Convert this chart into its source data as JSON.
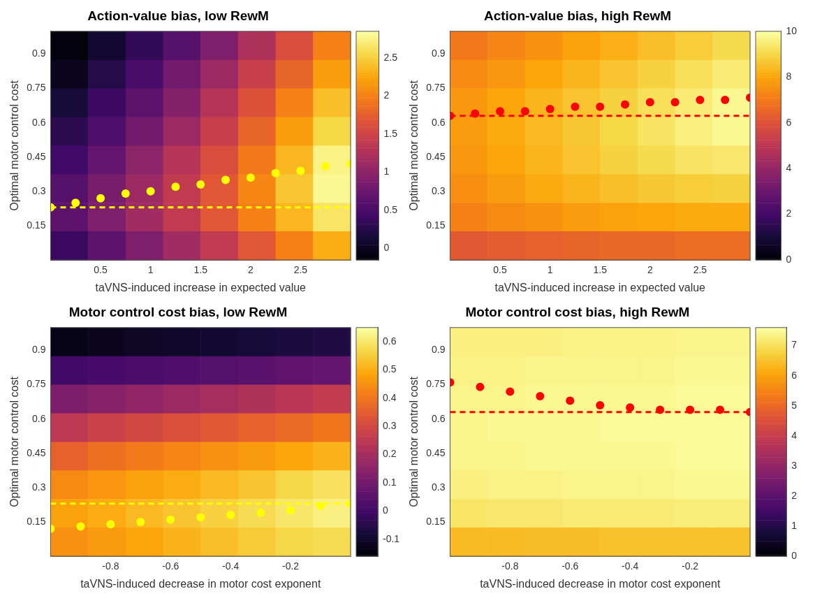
{
  "chart_data": [
    {
      "type": "heatmap",
      "title": "Action-value bias, low RewM",
      "xlabel": "taVNS-induced increase in expected value",
      "ylabel": "Optimal motor control cost",
      "x": [
        0.1875,
        0.5625,
        0.9375,
        1.3125,
        1.6875,
        2.0625,
        2.4375,
        2.8125
      ],
      "y": [
        0.9375,
        0.8125,
        0.6875,
        0.5625,
        0.4375,
        0.3125,
        0.1875,
        0.0625
      ],
      "cells": [
        [
          -0.1,
          0.1,
          0.35,
          0.6,
          0.9,
          1.25,
          1.6,
          2.0
        ],
        [
          0.0,
          0.25,
          0.5,
          0.8,
          1.1,
          1.45,
          1.8,
          2.2
        ],
        [
          0.15,
          0.4,
          0.65,
          0.95,
          1.3,
          1.65,
          2.0,
          2.4
        ],
        [
          0.3,
          0.55,
          0.8,
          1.1,
          1.45,
          1.8,
          2.2,
          2.55
        ],
        [
          0.45,
          0.7,
          1.0,
          1.3,
          1.6,
          1.95,
          2.35,
          2.75
        ],
        [
          0.6,
          0.85,
          1.1,
          1.4,
          1.7,
          2.05,
          2.45,
          2.8
        ],
        [
          0.65,
          0.9,
          1.15,
          1.4,
          1.7,
          2.0,
          2.35,
          2.65
        ],
        [
          0.4,
          0.65,
          0.9,
          1.15,
          1.4,
          1.7,
          2.0,
          2.3
        ]
      ],
      "clim": [
        -0.15,
        2.85
      ],
      "cticks": [
        0,
        0.5,
        1,
        1.5,
        2,
        2.5
      ],
      "xlim": [
        0,
        3
      ],
      "xticks": [
        0.5,
        1,
        1.5,
        2,
        2.5
      ],
      "ylim": [
        0,
        1
      ],
      "yticks": [
        0.15,
        0.3,
        0.45,
        0.6,
        0.75,
        0.9
      ],
      "series": [
        {
          "type": "scatter",
          "color": "#ffff00",
          "marker": "circle",
          "x": [
            0,
            0.25,
            0.5,
            0.75,
            1,
            1.25,
            1.5,
            1.75,
            2,
            2.25,
            2.5,
            2.75,
            3
          ],
          "values": [
            0.23,
            0.25,
            0.27,
            0.29,
            0.3,
            0.32,
            0.33,
            0.35,
            0.36,
            0.38,
            0.39,
            0.41,
            0.42
          ]
        }
      ],
      "ref_lines": [
        {
          "axis": "y",
          "value": 0.23,
          "color": "#ffff00",
          "line_style": "dashed"
        }
      ]
    },
    {
      "type": "heatmap",
      "title": "Action-value bias, high RewM",
      "xlabel": "taVNS-induced increase in expected value",
      "ylabel": "Optimal motor control cost",
      "x": [
        0.1875,
        0.5625,
        0.9375,
        1.3125,
        1.6875,
        2.0625,
        2.4375,
        2.8125
      ],
      "y": [
        0.9375,
        0.8125,
        0.6875,
        0.5625,
        0.4375,
        0.3125,
        0.1875,
        0.0625
      ],
      "cells": [
        [
          7.0,
          7.3,
          7.6,
          7.9,
          8.2,
          8.5,
          8.8,
          9.1
        ],
        [
          7.4,
          7.7,
          8.0,
          8.3,
          8.6,
          8.9,
          9.2,
          9.5
        ],
        [
          7.7,
          8.0,
          8.3,
          8.6,
          8.9,
          9.2,
          9.5,
          9.8
        ],
        [
          7.8,
          8.1,
          8.4,
          8.7,
          9.0,
          9.3,
          9.6,
          9.8
        ],
        [
          7.7,
          8.0,
          8.3,
          8.6,
          8.9,
          9.1,
          9.3,
          9.4
        ],
        [
          7.5,
          7.8,
          8.1,
          8.3,
          8.5,
          8.7,
          8.8,
          8.9
        ],
        [
          7.2,
          7.4,
          7.6,
          7.8,
          7.9,
          8.0,
          8.1,
          8.1
        ],
        [
          6.2,
          6.3,
          6.4,
          6.5,
          6.6,
          6.6,
          6.7,
          6.7
        ]
      ],
      "clim": [
        0,
        10
      ],
      "cticks": [
        0,
        2,
        4,
        6,
        8,
        10
      ],
      "xlim": [
        0,
        3
      ],
      "xticks": [
        0.5,
        1,
        1.5,
        2,
        2.5
      ],
      "ylim": [
        0,
        1
      ],
      "yticks": [
        0.15,
        0.3,
        0.45,
        0.6,
        0.75,
        0.9
      ],
      "series": [
        {
          "type": "scatter",
          "color": "#ff0000",
          "marker": "circle",
          "x": [
            0,
            0.25,
            0.5,
            0.75,
            1,
            1.25,
            1.5,
            1.75,
            2,
            2.25,
            2.5,
            2.75,
            3
          ],
          "values": [
            0.63,
            0.64,
            0.65,
            0.65,
            0.66,
            0.67,
            0.67,
            0.68,
            0.69,
            0.69,
            0.7,
            0.7,
            0.71
          ]
        }
      ],
      "ref_lines": [
        {
          "axis": "y",
          "value": 0.63,
          "color": "#ff0000",
          "line_style": "dashed"
        }
      ]
    },
    {
      "type": "heatmap",
      "title": "Motor control cost bias, low RewM",
      "xlabel": "taVNS-induced decrease in motor cost exponent",
      "ylabel": "Optimal motor control cost",
      "x": [
        -0.9375,
        -0.8125,
        -0.6875,
        -0.5625,
        -0.4375,
        -0.3125,
        -0.1875,
        -0.0625
      ],
      "y": [
        0.9375,
        0.8125,
        0.6875,
        0.5625,
        0.4375,
        0.3125,
        0.1875,
        0.0625
      ],
      "cells": [
        [
          -0.13,
          -0.12,
          -0.11,
          -0.1,
          -0.09,
          -0.08,
          -0.07,
          -0.06
        ],
        [
          0.0,
          0.01,
          0.02,
          0.03,
          0.04,
          0.05,
          0.06,
          0.07
        ],
        [
          0.12,
          0.14,
          0.16,
          0.18,
          0.2,
          0.22,
          0.24,
          0.26
        ],
        [
          0.25,
          0.28,
          0.3,
          0.32,
          0.34,
          0.36,
          0.38,
          0.4
        ],
        [
          0.36,
          0.39,
          0.41,
          0.43,
          0.45,
          0.47,
          0.49,
          0.51
        ],
        [
          0.44,
          0.46,
          0.48,
          0.5,
          0.52,
          0.54,
          0.57,
          0.59
        ],
        [
          0.48,
          0.5,
          0.52,
          0.54,
          0.56,
          0.58,
          0.6,
          0.62
        ],
        [
          0.45,
          0.47,
          0.49,
          0.51,
          0.53,
          0.55,
          0.57,
          0.58
        ]
      ],
      "clim": [
        -0.16,
        0.65
      ],
      "cticks": [
        -0.1,
        0,
        0.1,
        0.2,
        0.3,
        0.4,
        0.5,
        0.6
      ],
      "xlim": [
        -1,
        0
      ],
      "xticks": [
        -0.8,
        -0.6,
        -0.4,
        -0.2
      ],
      "ylim": [
        0,
        1
      ],
      "yticks": [
        0.15,
        0.3,
        0.45,
        0.6,
        0.75,
        0.9
      ],
      "series": [
        {
          "type": "scatter",
          "color": "#ffff00",
          "marker": "circle",
          "x": [
            -1,
            -0.9,
            -0.8,
            -0.7,
            -0.6,
            -0.5,
            -0.4,
            -0.3,
            -0.2,
            -0.1,
            0
          ],
          "values": [
            0.12,
            0.13,
            0.14,
            0.15,
            0.16,
            0.17,
            0.18,
            0.19,
            0.2,
            0.22,
            0.23
          ]
        }
      ],
      "ref_lines": [
        {
          "axis": "y",
          "value": 0.23,
          "color": "#ffff00",
          "line_style": "dashed"
        }
      ]
    },
    {
      "type": "heatmap",
      "title": "Motor control cost bias, high RewM",
      "xlabel": "taVNS-induced decrease in motor cost exponent",
      "ylabel": "Optimal motor control cost",
      "x": [
        -0.9375,
        -0.8125,
        -0.6875,
        -0.5625,
        -0.4375,
        -0.3125,
        -0.1875,
        -0.0625
      ],
      "y": [
        0.9375,
        0.8125,
        0.6875,
        0.5625,
        0.4375,
        0.3125,
        0.1875,
        0.0625
      ],
      "cells": [
        [
          7.3,
          7.3,
          7.3,
          7.35,
          7.35,
          7.35,
          7.4,
          7.4
        ],
        [
          7.35,
          7.35,
          7.4,
          7.4,
          7.4,
          7.4,
          7.45,
          7.45
        ],
        [
          7.4,
          7.4,
          7.45,
          7.45,
          7.45,
          7.45,
          7.5,
          7.5
        ],
        [
          7.4,
          7.45,
          7.45,
          7.45,
          7.5,
          7.5,
          7.5,
          7.5
        ],
        [
          7.4,
          7.4,
          7.45,
          7.45,
          7.45,
          7.45,
          7.5,
          7.5
        ],
        [
          7.3,
          7.35,
          7.35,
          7.4,
          7.4,
          7.4,
          7.45,
          7.45
        ],
        [
          7.1,
          7.15,
          7.15,
          7.2,
          7.2,
          7.2,
          7.25,
          7.25
        ],
        [
          6.4,
          6.4,
          6.45,
          6.45,
          6.5,
          6.5,
          6.5,
          6.5
        ]
      ],
      "clim": [
        0,
        7.6
      ],
      "cticks": [
        0,
        1,
        2,
        3,
        4,
        5,
        6,
        7
      ],
      "xlim": [
        -1,
        0
      ],
      "xticks": [
        -0.8,
        -0.6,
        -0.4,
        -0.2
      ],
      "ylim": [
        0,
        1
      ],
      "yticks": [
        0.15,
        0.3,
        0.45,
        0.6,
        0.75,
        0.9
      ],
      "series": [
        {
          "type": "scatter",
          "color": "#ff0000",
          "marker": "circle",
          "x": [
            -1,
            -0.9,
            -0.8,
            -0.7,
            -0.6,
            -0.5,
            -0.4,
            -0.3,
            -0.2,
            -0.1,
            0
          ],
          "values": [
            0.76,
            0.74,
            0.72,
            0.7,
            0.68,
            0.66,
            0.65,
            0.64,
            0.64,
            0.64,
            0.63
          ]
        }
      ],
      "ref_lines": [
        {
          "axis": "y",
          "value": 0.63,
          "color": "#ff0000",
          "line_style": "dashed"
        }
      ]
    }
  ]
}
